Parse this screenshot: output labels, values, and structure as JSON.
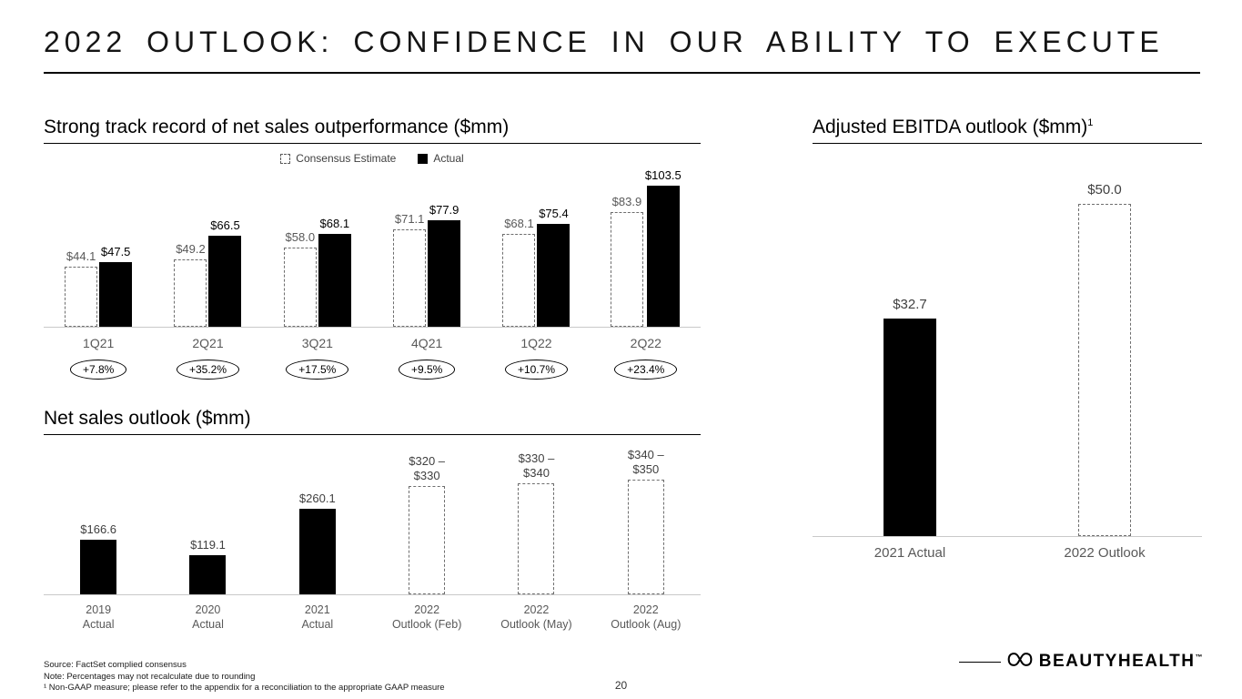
{
  "title": "2022 OUTLOOK: CONFIDENCE IN OUR ABILITY TO EXECUTE",
  "chart_data": [
    {
      "type": "bar",
      "title": "Strong track record of net sales outperformance ($mm)",
      "legend": [
        "Consensus Estimate",
        "Actual"
      ],
      "legend_position": "top",
      "categories": [
        "1Q21",
        "2Q21",
        "3Q21",
        "4Q21",
        "1Q22",
        "2Q22"
      ],
      "series": [
        {
          "name": "Consensus Estimate",
          "style": "dashed-outline",
          "values": [
            44.1,
            49.2,
            58.0,
            71.1,
            68.1,
            83.9
          ],
          "labels": [
            "$44.1",
            "$49.2",
            "$58.0",
            "$71.1",
            "$68.1",
            "$83.9"
          ]
        },
        {
          "name": "Actual",
          "style": "solid-black",
          "values": [
            47.5,
            66.5,
            68.1,
            77.9,
            75.4,
            103.5
          ],
          "labels": [
            "$47.5",
            "$66.5",
            "$68.1",
            "$77.9",
            "$75.4",
            "$103.5"
          ]
        }
      ],
      "outperformance": [
        "+7.8%",
        "+35.2%",
        "+17.5%",
        "+9.5%",
        "+10.7%",
        "+23.4%"
      ],
      "ylim": [
        0,
        110
      ],
      "grid": false
    },
    {
      "type": "bar",
      "title": "Net sales outlook ($mm)",
      "categories": [
        [
          "2019",
          "Actual"
        ],
        [
          "2020",
          "Actual"
        ],
        [
          "2021",
          "Actual"
        ],
        [
          "2022",
          "Outlook (Feb)"
        ],
        [
          "2022",
          "Outlook (May)"
        ],
        [
          "2022",
          "Outlook (Aug)"
        ]
      ],
      "bars": [
        {
          "label_lines": [
            "$166.6"
          ],
          "value": 166.6,
          "style": "solid"
        },
        {
          "label_lines": [
            "$119.1"
          ],
          "value": 119.1,
          "style": "solid"
        },
        {
          "label_lines": [
            "$260.1"
          ],
          "value": 260.1,
          "style": "solid"
        },
        {
          "label_lines": [
            "$320 –",
            "$330"
          ],
          "value": 330,
          "range": [
            320,
            330
          ],
          "style": "dashed"
        },
        {
          "label_lines": [
            "$330 –",
            "$340"
          ],
          "value": 340,
          "range": [
            330,
            340
          ],
          "style": "dashed"
        },
        {
          "label_lines": [
            "$340 –",
            "$350"
          ],
          "value": 350,
          "range": [
            340,
            350
          ],
          "style": "dashed"
        }
      ],
      "ylim": [
        0,
        360
      ],
      "grid": false
    },
    {
      "type": "bar",
      "title": "Adjusted EBITDA outlook ($mm)",
      "title_sup": "1",
      "categories": [
        "2021 Actual",
        "2022 Outlook"
      ],
      "bars": [
        {
          "label_lines": [
            "$32.7"
          ],
          "value": 32.7,
          "style": "solid"
        },
        {
          "label_lines": [
            "$50.0"
          ],
          "value": 50.0,
          "style": "dashed"
        }
      ],
      "ylim": [
        0,
        50
      ],
      "grid": false
    }
  ],
  "footer": {
    "notes": [
      "Source: FactSet complied consensus",
      "Note: Percentages may not recalculate due to rounding",
      "¹ Non-GAAP measure; please refer to the appendix for a reconciliation to the appropriate GAAP measure"
    ],
    "page_number": "20",
    "logo_text": "BEAUTYHEALTH",
    "logo_tm": "™"
  }
}
